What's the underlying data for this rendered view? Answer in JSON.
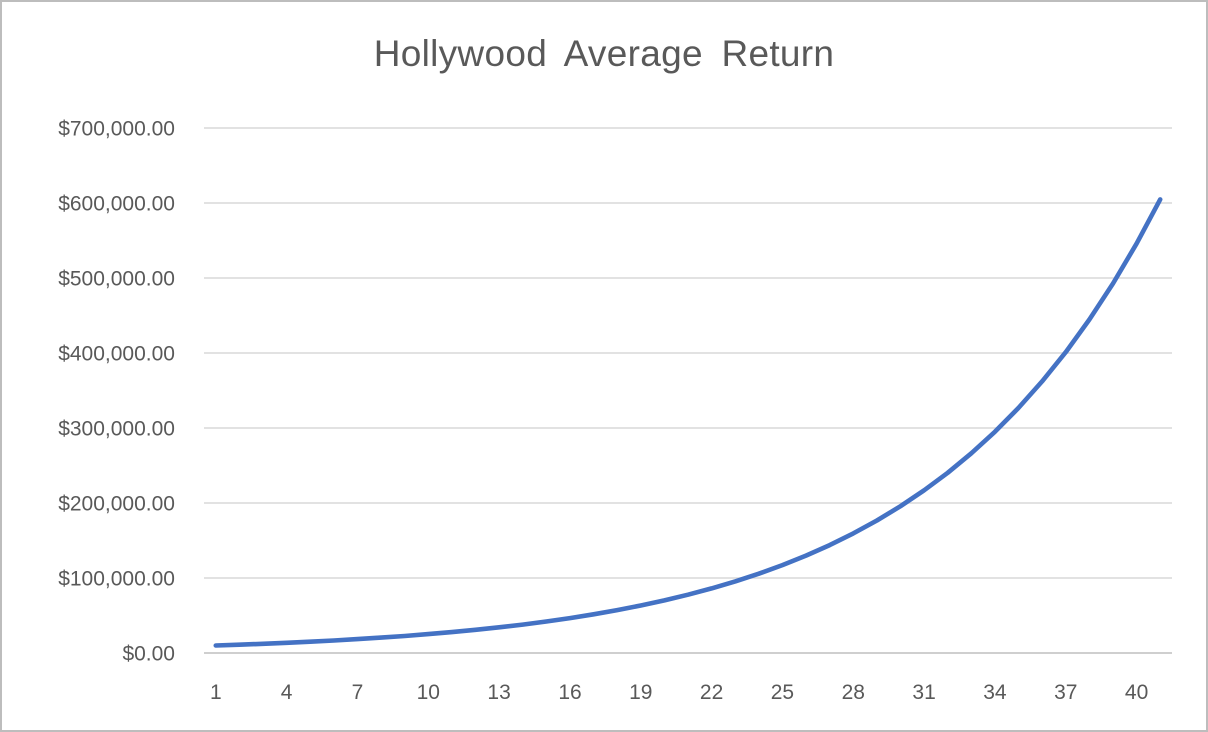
{
  "chart_data": {
    "type": "line",
    "title": "Hollywood Average Return",
    "xlabel": "",
    "ylabel": "",
    "x": [
      1,
      2,
      3,
      4,
      5,
      6,
      7,
      8,
      9,
      10,
      11,
      12,
      13,
      14,
      15,
      16,
      17,
      18,
      19,
      20,
      21,
      22,
      23,
      24,
      25,
      26,
      27,
      28,
      29,
      30,
      31,
      32,
      33,
      34,
      35,
      36,
      37,
      38,
      39,
      40,
      41
    ],
    "values": [
      10000,
      11080,
      12277,
      13603,
      15072,
      16699,
      18503,
      20501,
      22715,
      25169,
      27887,
      30899,
      34236,
      37933,
      42030,
      46569,
      51598,
      57171,
      63346,
      70187,
      77767,
      86166,
      95472,
      105783,
      117207,
      129866,
      143891,
      159431,
      176650,
      195728,
      216867,
      240288,
      266239,
      294993,
      326853,
      362153,
      401265,
      444602,
      492619,
      545822,
      604770
    ],
    "ylim": [
      0,
      700000
    ],
    "y_ticks": [
      0,
      100000,
      200000,
      300000,
      400000,
      500000,
      600000,
      700000
    ],
    "y_tick_labels": [
      "$0.00",
      "$100,000.00",
      "$200,000.00",
      "$300,000.00",
      "$400,000.00",
      "$500,000.00",
      "$600,000.00",
      "$700,000.00"
    ],
    "x_ticks": [
      1,
      4,
      7,
      10,
      13,
      16,
      19,
      22,
      25,
      28,
      31,
      34,
      37,
      40
    ],
    "x_tick_labels": [
      "1",
      "4",
      "7",
      "10",
      "13",
      "16",
      "19",
      "22",
      "25",
      "28",
      "31",
      "34",
      "37",
      "40"
    ],
    "grid": true,
    "legend_position": "none",
    "colors": {
      "line": "#4472C4",
      "gridline": "#D9D9D9",
      "axis_line": "#BFBFBF",
      "text": "#595959",
      "background": "#FFFFFF",
      "border": "#BDBDBD"
    }
  }
}
